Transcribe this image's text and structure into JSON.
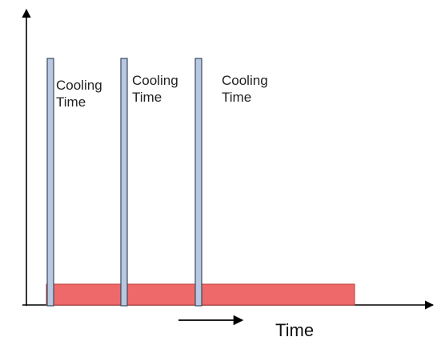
{
  "labels": {
    "pulses": [
      {
        "line1": "Cooling",
        "line2": "Time"
      },
      {
        "line1": "Cooling",
        "line2": "Time"
      },
      {
        "line1": "Cooling",
        "line2": "Time"
      }
    ],
    "time": "Time"
  },
  "colors": {
    "axis": "#000000",
    "pulse_fill": "#b8c8e0",
    "pulse_stroke": "#3a4a5e",
    "bar_fill": "#ee6a6a",
    "bar_stroke": "#c23a3a",
    "text": "#222222"
  }
}
